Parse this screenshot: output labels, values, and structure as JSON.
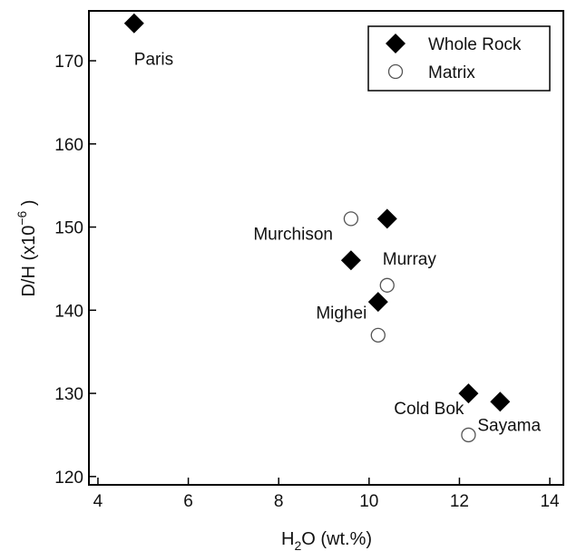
{
  "chart_data": {
    "type": "scatter",
    "xlabel": {
      "base": "H",
      "sub": "2",
      "rest": "O (wt.%)"
    },
    "ylabel": {
      "base": "D/H (x10",
      "sup": "−6",
      "rest": " )"
    },
    "xlim": [
      3.8,
      14.3
    ],
    "ylim": [
      119,
      176
    ],
    "xticks": [
      4,
      6,
      8,
      10,
      12,
      14
    ],
    "yticks": [
      120,
      130,
      140,
      150,
      160,
      170
    ],
    "grid": false,
    "legend_position": "top-right",
    "series": [
      {
        "name": "Whole Rock",
        "marker": "diamond-filled",
        "color": "#000000",
        "points": [
          {
            "x": 4.8,
            "y": 174.5
          },
          {
            "x": 10.4,
            "y": 151
          },
          {
            "x": 9.6,
            "y": 146
          },
          {
            "x": 10.2,
            "y": 141
          },
          {
            "x": 12.2,
            "y": 130
          },
          {
            "x": 12.9,
            "y": 129
          }
        ]
      },
      {
        "name": "Matrix",
        "marker": "circle-open",
        "color": "#555555",
        "points": [
          {
            "x": 9.6,
            "y": 151
          },
          {
            "x": 10.4,
            "y": 143
          },
          {
            "x": 10.2,
            "y": 137
          },
          {
            "x": 12.2,
            "y": 125
          }
        ]
      }
    ],
    "annotations": [
      {
        "text": "Paris",
        "x": 4.8,
        "y": 169.5,
        "anchor": "start"
      },
      {
        "text": "Murchison",
        "x": 9.2,
        "y": 148.5,
        "anchor": "end"
      },
      {
        "text": "Murray",
        "x": 10.3,
        "y": 145.5,
        "anchor": "start"
      },
      {
        "text": "Mighei",
        "x": 9.95,
        "y": 139,
        "anchor": "end"
      },
      {
        "text": "Cold Bok",
        "x": 12.1,
        "y": 127.5,
        "anchor": "end"
      },
      {
        "text": "Sayama",
        "x": 12.4,
        "y": 125.5,
        "anchor": "start"
      }
    ]
  }
}
